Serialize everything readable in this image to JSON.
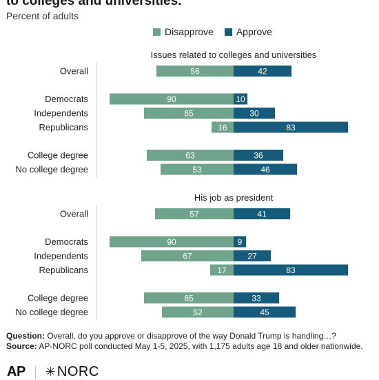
{
  "title": "to colleges and universities.",
  "subtitle": "Percent of adults",
  "legend": {
    "disapprove_label": "Disapprove",
    "approve_label": "Approve"
  },
  "colors": {
    "disapprove": "#6fa38b",
    "approve": "#165b79",
    "axis": "#cfcfcf"
  },
  "chart_data": {
    "type": "bar",
    "orientation": "horizontal-diverging",
    "series_names": [
      "Disapprove",
      "Approve"
    ],
    "panels": [
      {
        "heading": "Issues related to colleges and universities",
        "groups": [
          [
            {
              "label": "Overall",
              "disapprove": 56,
              "approve": 42
            }
          ],
          [
            {
              "label": "Democrats",
              "disapprove": 90,
              "approve": 10
            },
            {
              "label": "Independents",
              "disapprove": 65,
              "approve": 30
            },
            {
              "label": "Republicans",
              "disapprove": 16,
              "approve": 83
            }
          ],
          [
            {
              "label": "College degree",
              "disapprove": 63,
              "approve": 36
            },
            {
              "label": "No college degree",
              "disapprove": 53,
              "approve": 46
            }
          ]
        ]
      },
      {
        "heading": "His job as president",
        "groups": [
          [
            {
              "label": "Overall",
              "disapprove": 57,
              "approve": 41
            }
          ],
          [
            {
              "label": "Democrats",
              "disapprove": 90,
              "approve": 9
            },
            {
              "label": "Independents",
              "disapprove": 67,
              "approve": 27
            },
            {
              "label": "Republicans",
              "disapprove": 17,
              "approve": 83
            }
          ],
          [
            {
              "label": "College degree",
              "disapprove": 65,
              "approve": 33
            },
            {
              "label": "No college degree",
              "disapprove": 52,
              "approve": 45
            }
          ]
        ]
      }
    ]
  },
  "footer": {
    "question_label": "Question:",
    "question_text": "Overall, do you approve or disapprove of the way Donald Trump is handling…?",
    "source_label": "Source:",
    "source_text": "AP-NORC poll conducted May 1-5, 2025, with 1,175 adults age 18 and older nationwide."
  },
  "logos": {
    "ap": "AP",
    "norc": "NORC"
  }
}
